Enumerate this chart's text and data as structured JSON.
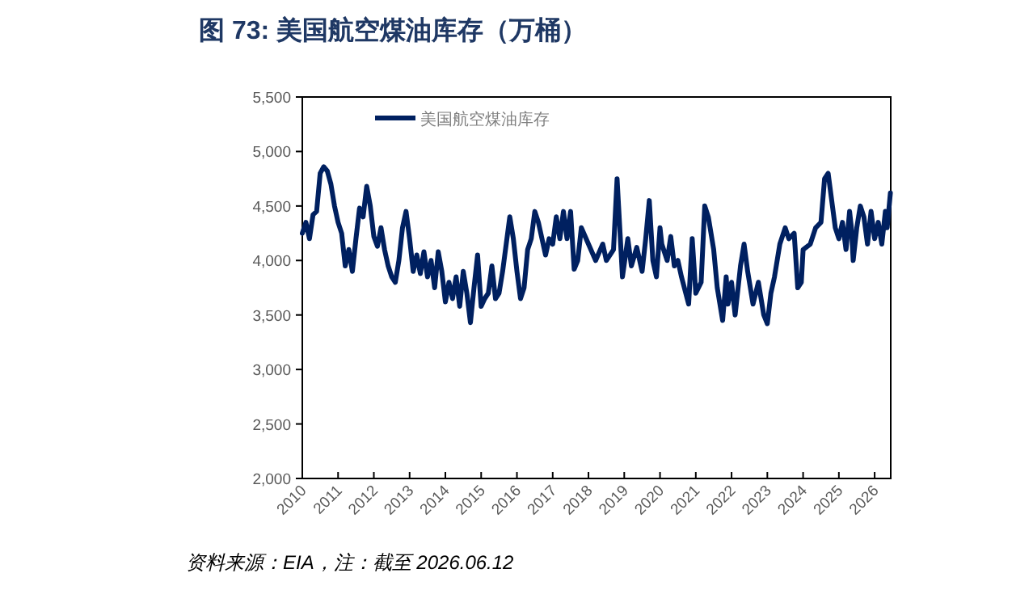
{
  "chart_data": {
    "type": "line",
    "title": "图 73:  美国航空煤油库存（万桶）",
    "annotations": [
      "资料来源：EIA，注：截至 2026.06.12"
    ],
    "legend": "top left",
    "grid": false,
    "marker": "none",
    "line_style": "solid",
    "xlim": [
      2010,
      2026.45
    ],
    "xticks": [
      2010,
      2011,
      2012,
      2013,
      2014,
      2015,
      2016,
      2017,
      2018,
      2019,
      2020,
      2021,
      2022,
      2023,
      2024,
      2025,
      2026
    ],
    "ylim": [
      2000,
      5500
    ],
    "yticks": [
      {
        "value": 2000,
        "label": "2,000"
      },
      {
        "value": 2500,
        "label": "2,500"
      },
      {
        "value": 3000,
        "label": "3,000"
      },
      {
        "value": 3500,
        "label": "3,500"
      },
      {
        "value": 4000,
        "label": "4,000"
      },
      {
        "value": 4500,
        "label": "4,500"
      },
      {
        "value": 5000,
        "label": "5,000"
      },
      {
        "value": 5500,
        "label": "5,500"
      }
    ],
    "x": [
      2010.0,
      2010.1,
      2010.2,
      2010.3,
      2010.4,
      2010.5,
      2010.6,
      2010.7,
      2010.8,
      2010.9,
      2011.0,
      2011.1,
      2011.2,
      2011.3,
      2011.4,
      2011.5,
      2011.6,
      2011.7,
      2011.8,
      2011.9,
      2012.0,
      2012.1,
      2012.2,
      2012.3,
      2012.4,
      2012.5,
      2012.6,
      2012.7,
      2012.8,
      2012.9,
      2013.0,
      2013.1,
      2013.2,
      2013.3,
      2013.4,
      2013.5,
      2013.6,
      2013.7,
      2013.8,
      2013.9,
      2014.0,
      2014.1,
      2014.2,
      2014.3,
      2014.4,
      2014.5,
      2014.6,
      2014.7,
      2014.8,
      2014.9,
      2015.0,
      2015.1,
      2015.2,
      2015.3,
      2015.4,
      2015.5,
      2015.6,
      2015.8,
      2015.9,
      2016.0,
      2016.1,
      2016.2,
      2016.3,
      2016.4,
      2016.5,
      2016.6,
      2016.7,
      2016.8,
      2016.9,
      2017.0,
      2017.1,
      2017.2,
      2017.3,
      2017.4,
      2017.5,
      2017.6,
      2017.7,
      2017.8,
      2018.0,
      2018.2,
      2018.4,
      2018.5,
      2018.7,
      2018.8,
      2018.95,
      2019.1,
      2019.2,
      2019.35,
      2019.5,
      2019.6,
      2019.7,
      2019.8,
      2019.9,
      2020.0,
      2020.05,
      2020.2,
      2020.3,
      2020.4,
      2020.5,
      2020.6,
      2020.8,
      2020.9,
      2021.0,
      2021.15,
      2021.25,
      2021.35,
      2021.5,
      2021.6,
      2021.75,
      2021.85,
      2021.9,
      2022.0,
      2022.1,
      2022.25,
      2022.35,
      2022.45,
      2022.6,
      2022.75,
      2022.9,
      2023.0,
      2023.1,
      2023.2,
      2023.35,
      2023.5,
      2023.6,
      2023.75,
      2023.85,
      2023.95,
      2024.0,
      2024.2,
      2024.35,
      2024.5,
      2024.6,
      2024.7,
      2024.8,
      2024.9,
      2025.0,
      2025.1,
      2025.2,
      2025.3,
      2025.35,
      2025.4,
      2025.5,
      2025.6,
      2025.7,
      2025.8,
      2025.9,
      2026.0,
      2026.1,
      2026.2,
      2026.3,
      2026.35,
      2026.44
    ],
    "series": [
      {
        "name": "美国航空煤油库存",
        "color": "#002060",
        "values": [
          4250,
          4350,
          4200,
          4420,
          4450,
          4800,
          4860,
          4820,
          4700,
          4500,
          4350,
          4250,
          3950,
          4100,
          3900,
          4200,
          4480,
          4400,
          4680,
          4500,
          4220,
          4130,
          4300,
          4100,
          3950,
          3850,
          3800,
          4000,
          4300,
          4450,
          4200,
          3900,
          4050,
          3880,
          4080,
          3850,
          4000,
          3750,
          4080,
          3900,
          3620,
          3800,
          3650,
          3850,
          3580,
          3900,
          3700,
          3430,
          3750,
          4050,
          3580,
          3650,
          3700,
          3950,
          3650,
          3700,
          3900,
          4400,
          4200,
          3900,
          3650,
          3750,
          4100,
          4200,
          4450,
          4350,
          4200,
          4050,
          4200,
          4150,
          4400,
          4200,
          4450,
          4200,
          4450,
          3920,
          4000,
          4300,
          4150,
          4000,
          4150,
          4000,
          4100,
          4750,
          3850,
          4200,
          3950,
          4120,
          3900,
          4200,
          4550,
          4000,
          3850,
          4300,
          4150,
          4000,
          4220,
          3950,
          4000,
          3850,
          3600,
          4200,
          3700,
          3800,
          4500,
          4400,
          4100,
          3750,
          3450,
          3850,
          3600,
          3800,
          3500,
          3950,
          4150,
          3900,
          3600,
          3800,
          3500,
          3420,
          3700,
          3850,
          4150,
          4300,
          4200,
          4250,
          3750,
          3800,
          4100,
          4150,
          4300,
          4350,
          4750,
          4800,
          4550,
          4300,
          4200,
          4350,
          4100,
          4450,
          4300,
          4000,
          4300,
          4500,
          4400,
          4150,
          4450,
          4200,
          4350,
          4150,
          4450,
          4300,
          4620
        ]
      }
    ]
  }
}
